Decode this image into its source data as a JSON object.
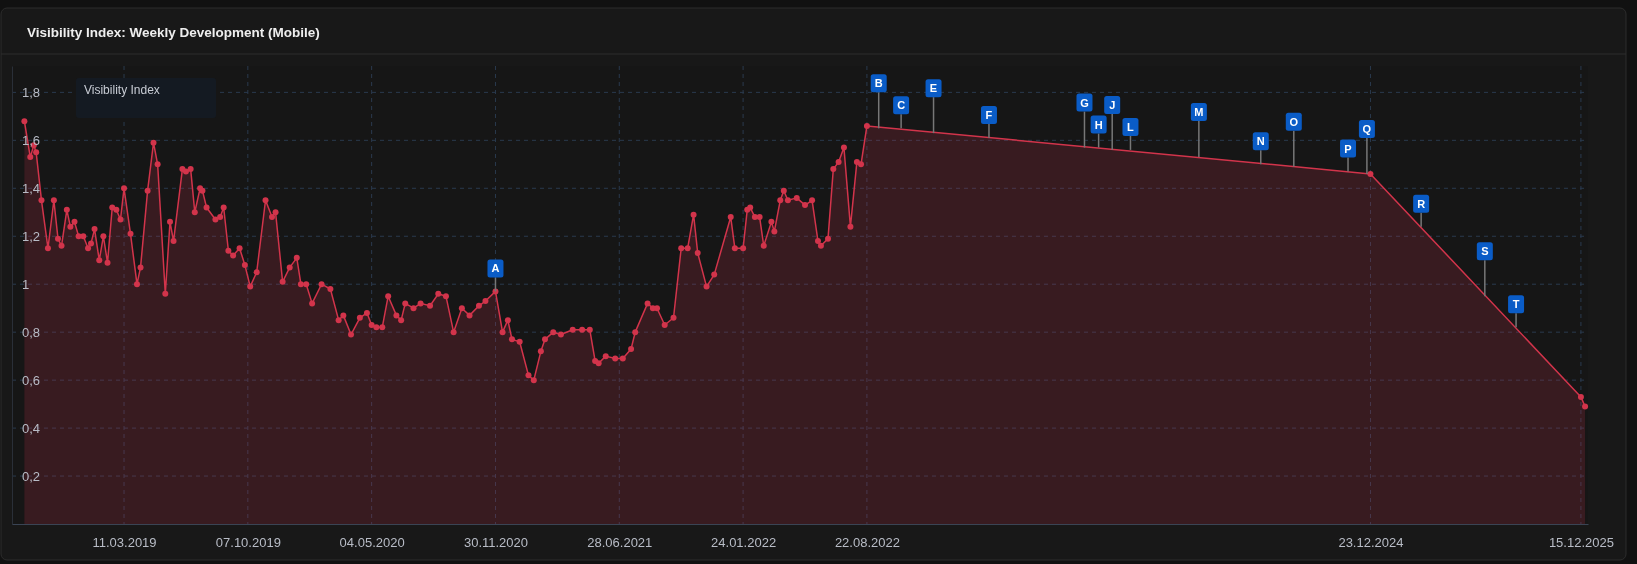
{
  "chart_data": {
    "type": "area",
    "title": "Visibility Index: Weekly Development (Mobile)",
    "legend_title": "Visibility Index",
    "grid": true,
    "marker": "circle",
    "xlim": [
      "2018-09-02",
      "2025-12-27"
    ],
    "ylim": [
      0,
      1.91
    ],
    "xticks": [
      {
        "value": "2019-03-11",
        "label": "11.03.2019"
      },
      {
        "value": "2019-10-07",
        "label": "07.10.2019"
      },
      {
        "value": "2020-05-04",
        "label": "04.05.2020"
      },
      {
        "value": "2020-11-30",
        "label": "30.11.2020"
      },
      {
        "value": "2021-06-28",
        "label": "28.06.2021"
      },
      {
        "value": "2022-01-24",
        "label": "24.01.2022"
      },
      {
        "value": "2022-08-22",
        "label": "22.08.2022"
      },
      {
        "value": "2024-12-23",
        "label": "23.12.2024"
      },
      {
        "value": "2025-12-15",
        "label": "15.12.2025"
      }
    ],
    "yticks": [
      {
        "value": 0.2,
        "label": "0,2"
      },
      {
        "value": 0.4,
        "label": "0,4"
      },
      {
        "value": 0.6,
        "label": "0,6"
      },
      {
        "value": 0.8,
        "label": "0,8"
      },
      1,
      {
        "value": 1.2,
        "label": "1,2"
      },
      {
        "value": 1.4,
        "label": "1,4"
      },
      {
        "value": 1.6,
        "label": "1,6"
      },
      {
        "value": 1.8,
        "label": "1,8"
      }
    ],
    "x": [
      "2018-09-23",
      "2018-10-03",
      "2018-10-09",
      "2018-10-13",
      "2018-10-22",
      "2018-11-02",
      "2018-11-12",
      "2018-11-19",
      "2018-11-25",
      "2018-12-04",
      "2018-12-10",
      "2018-12-17",
      "2018-12-24",
      "2019-01-01",
      "2019-01-09",
      "2019-01-14",
      "2019-01-20",
      "2019-01-28",
      "2019-02-04",
      "2019-02-11",
      "2019-02-19",
      "2019-02-26",
      "2019-03-05",
      "2019-03-11",
      "2019-03-22",
      "2019-04-02",
      "2019-04-08",
      "2019-04-20",
      "2019-04-30",
      "2019-05-07",
      "2019-05-20",
      "2019-05-28",
      "2019-06-03",
      "2019-06-18",
      "2019-06-24",
      "2019-07-02",
      "2019-07-09",
      "2019-07-18",
      "2019-07-22",
      "2019-07-29",
      "2019-08-13",
      "2019-08-21",
      "2019-08-27",
      "2019-09-04",
      "2019-09-12",
      "2019-09-23",
      "2019-10-02",
      "2019-10-11",
      "2019-10-22",
      "2019-11-06",
      "2019-11-17",
      "2019-11-23",
      "2019-12-05",
      "2019-12-17",
      "2019-12-29",
      "2020-01-05",
      "2020-01-14",
      "2020-01-24",
      "2020-02-09",
      "2020-02-24",
      "2020-03-09",
      "2020-03-17",
      "2020-03-30",
      "2020-04-14",
      "2020-04-26",
      "2020-05-04",
      "2020-05-12",
      "2020-05-22",
      "2020-06-01",
      "2020-06-15",
      "2020-06-23",
      "2020-06-30",
      "2020-07-14",
      "2020-07-26",
      "2020-08-11",
      "2020-08-25",
      "2020-09-07",
      "2020-09-20",
      "2020-10-04",
      "2020-10-17",
      "2020-11-02",
      "2020-11-13",
      "2020-11-30",
      "2020-12-12",
      "2020-12-21",
      "2020-12-28",
      "2021-01-10",
      "2021-01-25",
      "2021-02-03",
      "2021-02-15",
      "2021-02-22",
      "2021-03-08",
      "2021-03-21",
      "2021-04-10",
      "2021-04-26",
      "2021-05-09",
      "2021-05-18",
      "2021-05-24",
      "2021-06-05",
      "2021-06-21",
      "2021-07-04",
      "2021-07-18",
      "2021-07-25",
      "2021-08-15",
      "2021-08-24",
      "2021-08-31",
      "2021-09-13",
      "2021-09-28",
      "2021-10-11",
      "2021-10-22",
      "2021-11-01",
      "2021-11-08",
      "2021-11-23",
      "2021-12-06",
      "2022-01-03",
      "2022-01-10",
      "2022-01-24",
      "2022-01-31",
      "2022-02-05",
      "2022-02-13",
      "2022-02-21",
      "2022-02-28",
      "2022-03-13",
      "2022-03-18",
      "2022-03-28",
      "2022-04-03",
      "2022-04-10",
      "2022-04-25",
      "2022-05-09",
      "2022-05-21",
      "2022-05-31",
      "2022-06-05",
      "2022-06-17",
      "2022-06-26",
      "2022-07-05",
      "2022-07-14",
      "2022-07-25",
      "2022-08-05",
      "2022-08-12",
      "2022-08-22",
      "2024-12-23",
      "2025-12-15",
      "2025-12-22"
    ],
    "series": [
      {
        "color": "#d2344b",
        "values": [
          1.68,
          1.53,
          1.58,
          1.55,
          1.35,
          1.15,
          1.35,
          1.19,
          1.16,
          1.31,
          1.24,
          1.26,
          1.2,
          1.2,
          1.15,
          1.17,
          1.23,
          1.1,
          1.2,
          1.09,
          1.32,
          1.31,
          1.27,
          1.4,
          1.21,
          1.0,
          1.07,
          1.39,
          1.59,
          1.5,
          0.96,
          1.26,
          1.18,
          1.48,
          1.47,
          1.48,
          1.3,
          1.4,
          1.39,
          1.32,
          1.27,
          1.28,
          1.32,
          1.14,
          1.12,
          1.15,
          1.08,
          0.99,
          1.05,
          1.35,
          1.28,
          1.3,
          1.01,
          1.07,
          1.11,
          1.0,
          1.0,
          0.92,
          1.0,
          0.98,
          0.85,
          0.87,
          0.79,
          0.86,
          0.88,
          0.83,
          0.82,
          0.82,
          0.95,
          0.87,
          0.85,
          0.92,
          0.9,
          0.92,
          0.91,
          0.96,
          0.95,
          0.8,
          0.9,
          0.87,
          0.91,
          0.93,
          0.97,
          0.8,
          0.85,
          0.77,
          0.76,
          0.62,
          0.6,
          0.72,
          0.77,
          0.8,
          0.79,
          0.81,
          0.81,
          0.81,
          0.68,
          0.67,
          0.7,
          0.69,
          0.69,
          0.73,
          0.8,
          0.92,
          0.9,
          0.9,
          0.83,
          0.86,
          1.15,
          1.15,
          1.29,
          1.13,
          0.99,
          1.04,
          1.28,
          1.15,
          1.15,
          1.31,
          1.32,
          1.28,
          1.28,
          1.16,
          1.26,
          1.22,
          1.35,
          1.39,
          1.35,
          1.36,
          1.33,
          1.35,
          1.18,
          1.16,
          1.19,
          1.48,
          1.51,
          1.57,
          1.24,
          1.51,
          1.5,
          1.66,
          1.46,
          0.53,
          0.49
        ]
      }
    ],
    "annotations": [
      {
        "text": "A",
        "x": "2020-11-30",
        "y": 0.97
      },
      {
        "text": "B",
        "x": "2022-09-11",
        "y": 1.65
      },
      {
        "text": "C",
        "x": "2022-10-19",
        "y": 1.65
      },
      {
        "text": "E",
        "x": "2022-12-13",
        "y": 1.63
      },
      {
        "text": "F",
        "x": "2023-03-17",
        "y": 1.61
      },
      {
        "text": "G",
        "x": "2023-08-26",
        "y": 1.57
      },
      {
        "text": "H",
        "x": "2023-09-19",
        "y": 1.57
      },
      {
        "text": "J",
        "x": "2023-10-12",
        "y": 1.56
      },
      {
        "text": "L",
        "x": "2023-11-12",
        "y": 1.56
      },
      {
        "text": "M",
        "x": "2024-03-07",
        "y": 1.53
      },
      {
        "text": "N",
        "x": "2024-06-20",
        "y": 1.5
      },
      {
        "text": "O",
        "x": "2024-08-15",
        "y": 1.49
      },
      {
        "text": "P",
        "x": "2024-11-15",
        "y": 1.47
      },
      {
        "text": "Q",
        "x": "2024-12-17",
        "y": 1.46
      },
      {
        "text": "R",
        "x": "2025-03-19",
        "y": 1.24
      },
      {
        "text": "S",
        "x": "2025-07-05",
        "y": 0.95
      },
      {
        "text": "T",
        "x": "2025-08-27",
        "y": 0.82
      }
    ]
  }
}
